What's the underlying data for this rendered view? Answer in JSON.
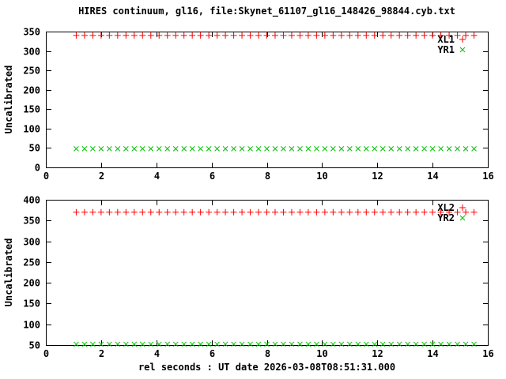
{
  "title": "HIRES continuum, gl16, file:Skynet_61107_gl16_148426_98844.cyb.txt",
  "xlabel": "rel seconds : UT date 2026-03-08T08:51:31.000",
  "colors": {
    "background": "#ffffff",
    "frame": "#000000",
    "text": "#000000",
    "series_red": "#ff0000",
    "series_green": "#00c000"
  },
  "chart_data": [
    {
      "type": "scatter",
      "ylabel": "Uncalibrated",
      "ylim": [
        0,
        350
      ],
      "yticks": [
        0,
        50,
        100,
        150,
        200,
        250,
        300,
        350
      ],
      "xlim": [
        0,
        16
      ],
      "xticks": [
        0,
        2,
        4,
        6,
        8,
        10,
        12,
        14,
        16
      ],
      "grid": false,
      "legend_position": "top-right-inside",
      "x": [
        1.1,
        1.4,
        1.7,
        2,
        2.3,
        2.6,
        2.9,
        3.2,
        3.5,
        3.8,
        4.1,
        4.4,
        4.7,
        5,
        5.3,
        5.6,
        5.9,
        6.2,
        6.5,
        6.8,
        7.1,
        7.4,
        7.7,
        8,
        8.3,
        8.6,
        8.9,
        9.2,
        9.5,
        9.8,
        10.1,
        10.4,
        10.7,
        11,
        11.3,
        11.6,
        11.9,
        12.2,
        12.5,
        12.8,
        13.1,
        13.4,
        13.7,
        14,
        14.3,
        14.6,
        14.9,
        15.2,
        15.5
      ],
      "series": [
        {
          "name": "XL1",
          "marker": "plus",
          "color": "#ff0000",
          "y_const": 340
        },
        {
          "name": "YR1",
          "marker": "cross",
          "color": "#00c000",
          "y_const": 48
        }
      ]
    },
    {
      "type": "scatter",
      "ylabel": "Uncalibrated",
      "ylim": [
        50,
        400
      ],
      "yticks": [
        50,
        100,
        150,
        200,
        250,
        300,
        350,
        400
      ],
      "xlim": [
        0,
        16
      ],
      "xticks": [
        0,
        2,
        4,
        6,
        8,
        10,
        12,
        14,
        16
      ],
      "grid": false,
      "legend_position": "top-right-inside",
      "x": [
        1.1,
        1.4,
        1.7,
        2,
        2.3,
        2.6,
        2.9,
        3.2,
        3.5,
        3.8,
        4.1,
        4.4,
        4.7,
        5,
        5.3,
        5.6,
        5.9,
        6.2,
        6.5,
        6.8,
        7.1,
        7.4,
        7.7,
        8,
        8.3,
        8.6,
        8.9,
        9.2,
        9.5,
        9.8,
        10.1,
        10.4,
        10.7,
        11,
        11.3,
        11.6,
        11.9,
        12.2,
        12.5,
        12.8,
        13.1,
        13.4,
        13.7,
        14,
        14.3,
        14.6,
        14.9,
        15.2,
        15.5
      ],
      "series": [
        {
          "name": "XL2",
          "marker": "plus",
          "color": "#ff0000",
          "y_const": 370
        },
        {
          "name": "YR2",
          "marker": "cross",
          "color": "#00c000",
          "y_const": 52
        }
      ]
    }
  ]
}
